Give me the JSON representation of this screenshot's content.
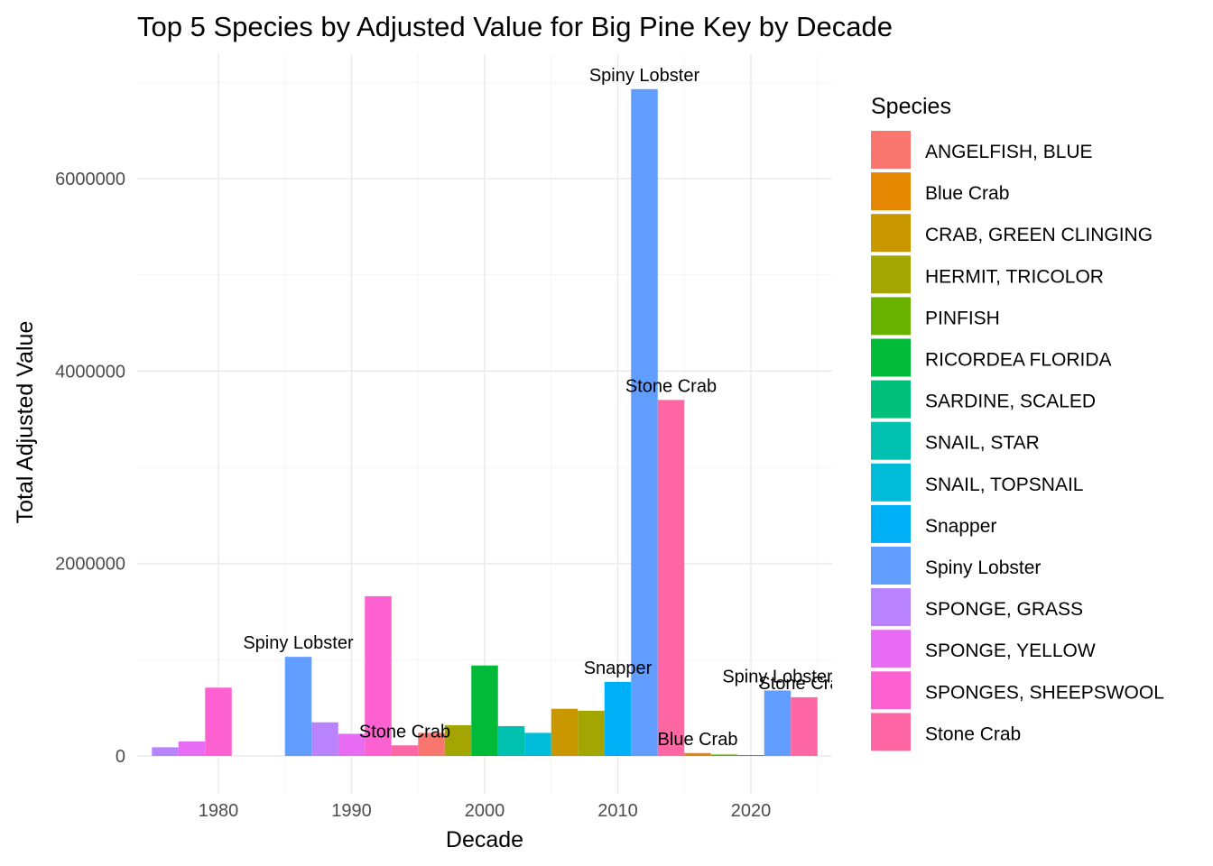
{
  "chart_data": {
    "type": "bar",
    "title": "Top 5 Species by Adjusted Value for Big Pine Key by Decade",
    "xlabel": "Decade",
    "ylabel": "Total Adjusted Value",
    "x_ticks": [
      "1980",
      "1990",
      "2000",
      "2010",
      "2020"
    ],
    "y_ticks": [
      "0",
      "2000000",
      "4000000",
      "6000000"
    ],
    "ylim": [
      -260000,
      7300000
    ],
    "grid": true,
    "legend": {
      "title": "Species",
      "placement": "right",
      "entries": [
        {
          "name": "ANGELFISH, BLUE",
          "color": "#F8766D"
        },
        {
          "name": "Blue Crab",
          "color": "#E58700"
        },
        {
          "name": "CRAB, GREEN CLINGING",
          "color": "#C99800"
        },
        {
          "name": "HERMIT, TRICOLOR",
          "color": "#A3A500"
        },
        {
          "name": "PINFISH",
          "color": "#6BB100"
        },
        {
          "name": "RICORDEA FLORIDA",
          "color": "#00BA38"
        },
        {
          "name": "SARDINE, SCALED",
          "color": "#00BF7D"
        },
        {
          "name": "SNAIL, STAR",
          "color": "#00C0AF"
        },
        {
          "name": "SNAIL, TOPSNAIL",
          "color": "#00BCD8"
        },
        {
          "name": "Snapper",
          "color": "#00B0F6"
        },
        {
          "name": "Spiny Lobster",
          "color": "#619CFF"
        },
        {
          "name": "SPONGE, GRASS",
          "color": "#B983FF"
        },
        {
          "name": "SPONGE, YELLOW",
          "color": "#E76BF3"
        },
        {
          "name": "SPONGES, SHEEPSWOOL",
          "color": "#FD61D1"
        },
        {
          "name": "Stone Crab",
          "color": "#FF67A4"
        }
      ]
    },
    "groups": [
      {
        "decade": 1980,
        "bars": [
          {
            "species": "SPONGE, GRASS",
            "value": 90000
          },
          {
            "species": "SPONGE, YELLOW",
            "value": 150000
          },
          {
            "species": "SPONGES, SHEEPSWOOL",
            "value": 710000
          }
        ]
      },
      {
        "decade": 1990,
        "bars": [
          {
            "species": "Spiny Lobster",
            "value": 1030000,
            "label": "Spiny Lobster"
          },
          {
            "species": "SPONGE, GRASS",
            "value": 350000
          },
          {
            "species": "SPONGE, YELLOW",
            "value": 230000
          },
          {
            "species": "SPONGES, SHEEPSWOOL",
            "value": 1660000
          },
          {
            "species": "Stone Crab",
            "value": 110000,
            "label": "Stone Crab"
          }
        ]
      },
      {
        "decade": 2000,
        "bars": [
          {
            "species": "ANGELFISH, BLUE",
            "value": 240000
          },
          {
            "species": "HERMIT, TRICOLOR",
            "value": 320000
          },
          {
            "species": "RICORDEA FLORIDA",
            "value": 940000
          },
          {
            "species": "SNAIL, STAR",
            "value": 310000
          },
          {
            "species": "SNAIL, TOPSNAIL",
            "value": 240000
          }
        ]
      },
      {
        "decade": 2010,
        "bars": [
          {
            "species": "CRAB, GREEN CLINGING",
            "value": 490000
          },
          {
            "species": "HERMIT, TRICOLOR",
            "value": 470000
          },
          {
            "species": "Snapper",
            "value": 770000,
            "label": "Snapper"
          },
          {
            "species": "Spiny Lobster",
            "value": 6930000,
            "label": "Spiny Lobster"
          },
          {
            "species": "Stone Crab",
            "value": 3700000,
            "label": "Stone Crab"
          }
        ]
      },
      {
        "decade": 2020,
        "bars": [
          {
            "species": "Blue Crab",
            "value": 30000,
            "label": "Blue Crab"
          },
          {
            "species": "PINFISH",
            "value": 15000
          },
          {
            "species": "SARDINE, SCALED",
            "value": 8000
          },
          {
            "species": "Spiny Lobster",
            "value": 680000,
            "label": "Spiny Lobster"
          },
          {
            "species": "Stone Crab",
            "value": 610000,
            "label": "Stone Crab"
          }
        ]
      }
    ]
  }
}
